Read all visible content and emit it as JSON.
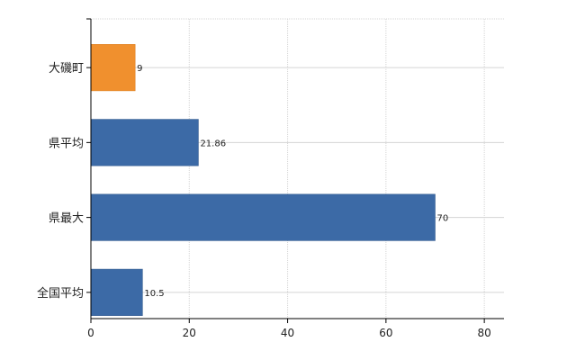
{
  "chart_data": {
    "type": "bar",
    "orientation": "horizontal",
    "categories": [
      "大磯町",
      "県平均",
      "県最大",
      "全国平均"
    ],
    "values": [
      9,
      21.86,
      70,
      10.5
    ],
    "value_labels": [
      "9",
      "21.86",
      "70",
      "10.5"
    ],
    "bar_colors": [
      "#f0902e",
      "#3c6aa6",
      "#3c6aa6",
      "#3c6aa6"
    ],
    "xlim": [
      0,
      84
    ],
    "xticks": [
      0,
      20,
      40,
      60,
      80
    ],
    "xtick_labels": [
      "0",
      "20",
      "40",
      "60",
      "80"
    ],
    "grid": true,
    "grid_style": "dotted",
    "title": "",
    "xlabel": "",
    "ylabel": ""
  },
  "colors": {
    "highlight": "#f0902e",
    "bar": "#3c6aa6",
    "bar_edge": "#2c5488",
    "grid": "#d4d4d4",
    "axis": "#000000"
  }
}
